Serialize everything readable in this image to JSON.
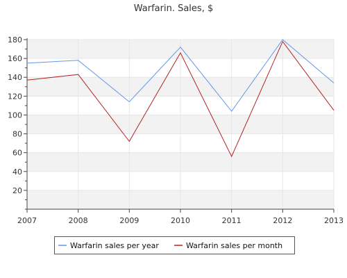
{
  "chart_data": {
    "type": "line",
    "title": "Warfarin. Sales, $",
    "xlabel": "",
    "ylabel": "",
    "categories": [
      "2007",
      "2008",
      "2009",
      "2010",
      "2011",
      "2012",
      "2013"
    ],
    "series": [
      {
        "name": "Warfarin sales per year",
        "color": "#6495ed",
        "values": [
          155,
          158,
          114,
          172,
          104,
          180,
          134
        ]
      },
      {
        "name": "Warfarin sales per month",
        "color": "#b22222",
        "values": [
          137,
          143,
          72,
          166,
          56,
          178,
          105
        ]
      }
    ],
    "ylim": [
      0,
      180
    ],
    "yticks": [
      20,
      40,
      60,
      80,
      100,
      120,
      140,
      160,
      180
    ],
    "grid": true,
    "legend_position": "bottom-center"
  }
}
